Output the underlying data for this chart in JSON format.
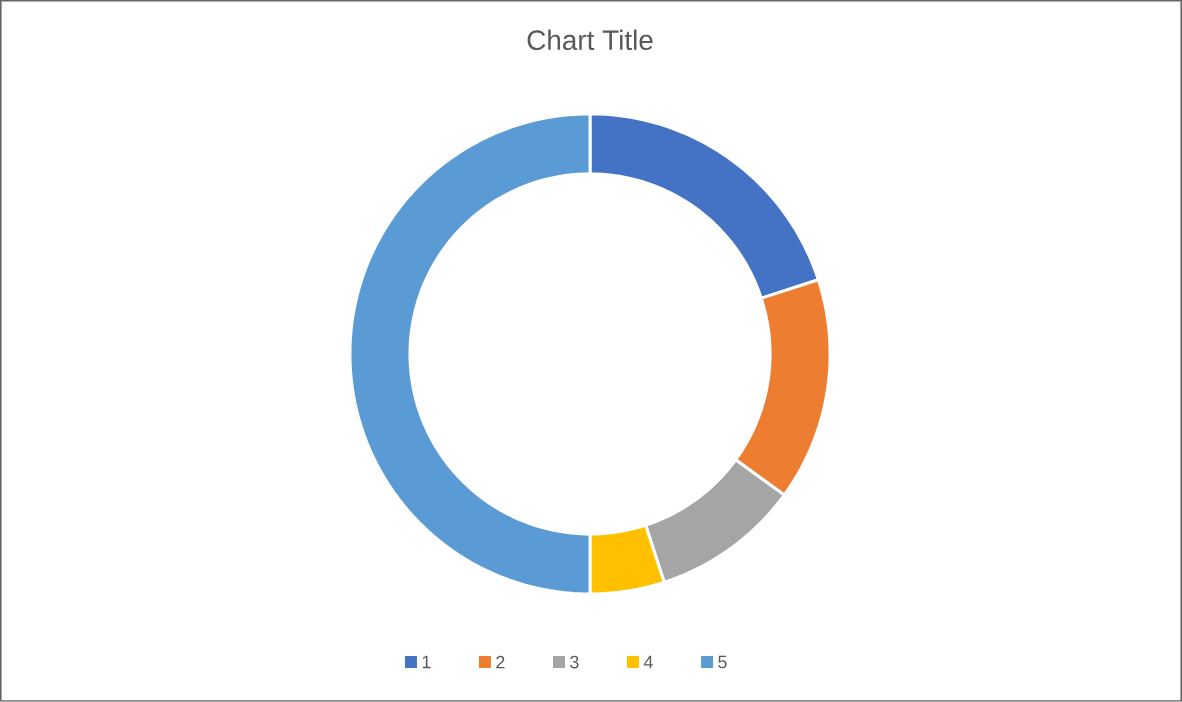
{
  "chart_data": {
    "type": "donut",
    "title": "Chart Title",
    "categories": [
      "1",
      "2",
      "3",
      "4",
      "5"
    ],
    "values": [
      20,
      15,
      10,
      5,
      50
    ],
    "colors": [
      "#4472c4",
      "#ed7d31",
      "#a5a5a5",
      "#ffc000",
      "#5b9bd5"
    ],
    "legend": "bottom"
  }
}
